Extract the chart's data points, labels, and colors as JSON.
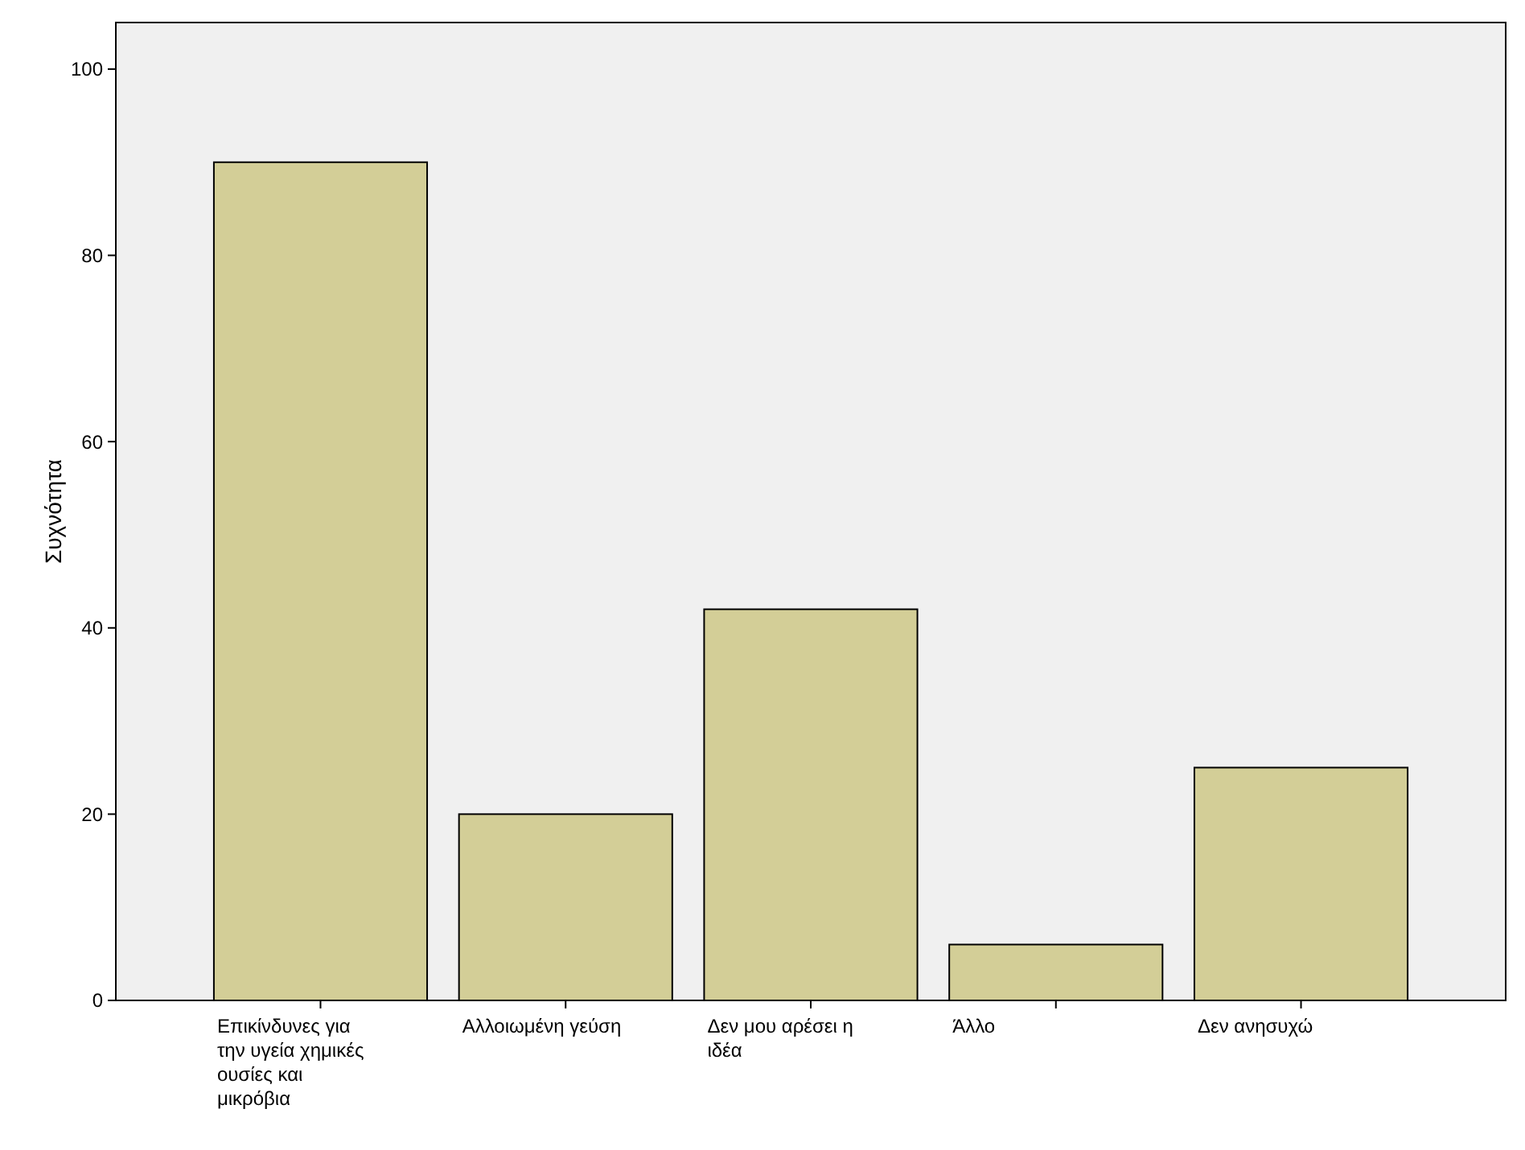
{
  "chart_data": {
    "type": "bar",
    "ylabel": "Συχνότητα",
    "categories": [
      "Επικίνδυνες για την υγεία χημικές ουσίες και μικρόβια",
      "Αλλοιωμένη γεύση",
      "Δεν μου αρέσει η ιδέα",
      "Άλλο",
      "Δεν ανησυχώ"
    ],
    "values": [
      90,
      20,
      42,
      6,
      25
    ],
    "color": "#d3ce97",
    "ylim": [
      0,
      105
    ],
    "yticks": [
      0,
      20,
      40,
      60,
      80,
      100
    ],
    "grid": false
  }
}
